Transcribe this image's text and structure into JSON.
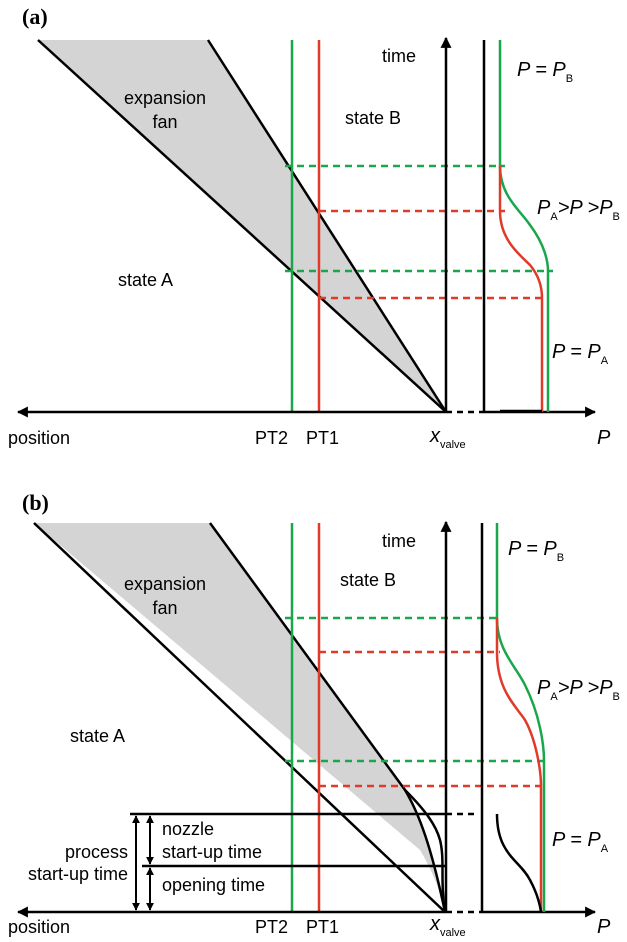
{
  "colors": {
    "fan_fill": "#d4d4d4",
    "pt2": "#1aa64a",
    "pt1": "#e03a2a",
    "axis": "#000000"
  },
  "panel_a": {
    "label": "(a)",
    "time_label": "time",
    "position_label": "position",
    "fan_label_1": "expansion",
    "fan_label_2": "fan",
    "state_a": "state A",
    "state_b": "state B",
    "pt2": "PT2",
    "pt1": "PT1",
    "x_main": "x",
    "x_sub": "valve",
    "p_axis": "P",
    "p_eq_pb_main": "P = P",
    "p_eq_pb_sub": "B",
    "p_mid_a": "P",
    "p_mid_a_sub": "A",
    "p_mid_rest": ">P >P",
    "p_mid_b_sub": "B",
    "p_eq_pa_main": "P = P",
    "p_eq_pa_sub": "A"
  },
  "panel_b": {
    "label": "(b)",
    "time_label": "time",
    "position_label": "position",
    "fan_label_1": "expansion",
    "fan_label_2": "fan",
    "state_a": "state A",
    "state_b": "state B",
    "pt2": "PT2",
    "pt1": "PT1",
    "x_main": "x",
    "x_sub": "valve",
    "p_axis": "P",
    "p_eq_pb_main": "P = P",
    "p_eq_pb_sub": "B",
    "p_mid_a": "P",
    "p_mid_a_sub": "A",
    "p_mid_rest": ">P >P",
    "p_mid_b_sub": "B",
    "p_eq_pa_main": "P = P",
    "p_eq_pa_sub": "A",
    "nozzle_1": "nozzle",
    "nozzle_2": "start-up time",
    "process_1": "process",
    "process_2": "start-up time",
    "opening": "opening time"
  }
}
